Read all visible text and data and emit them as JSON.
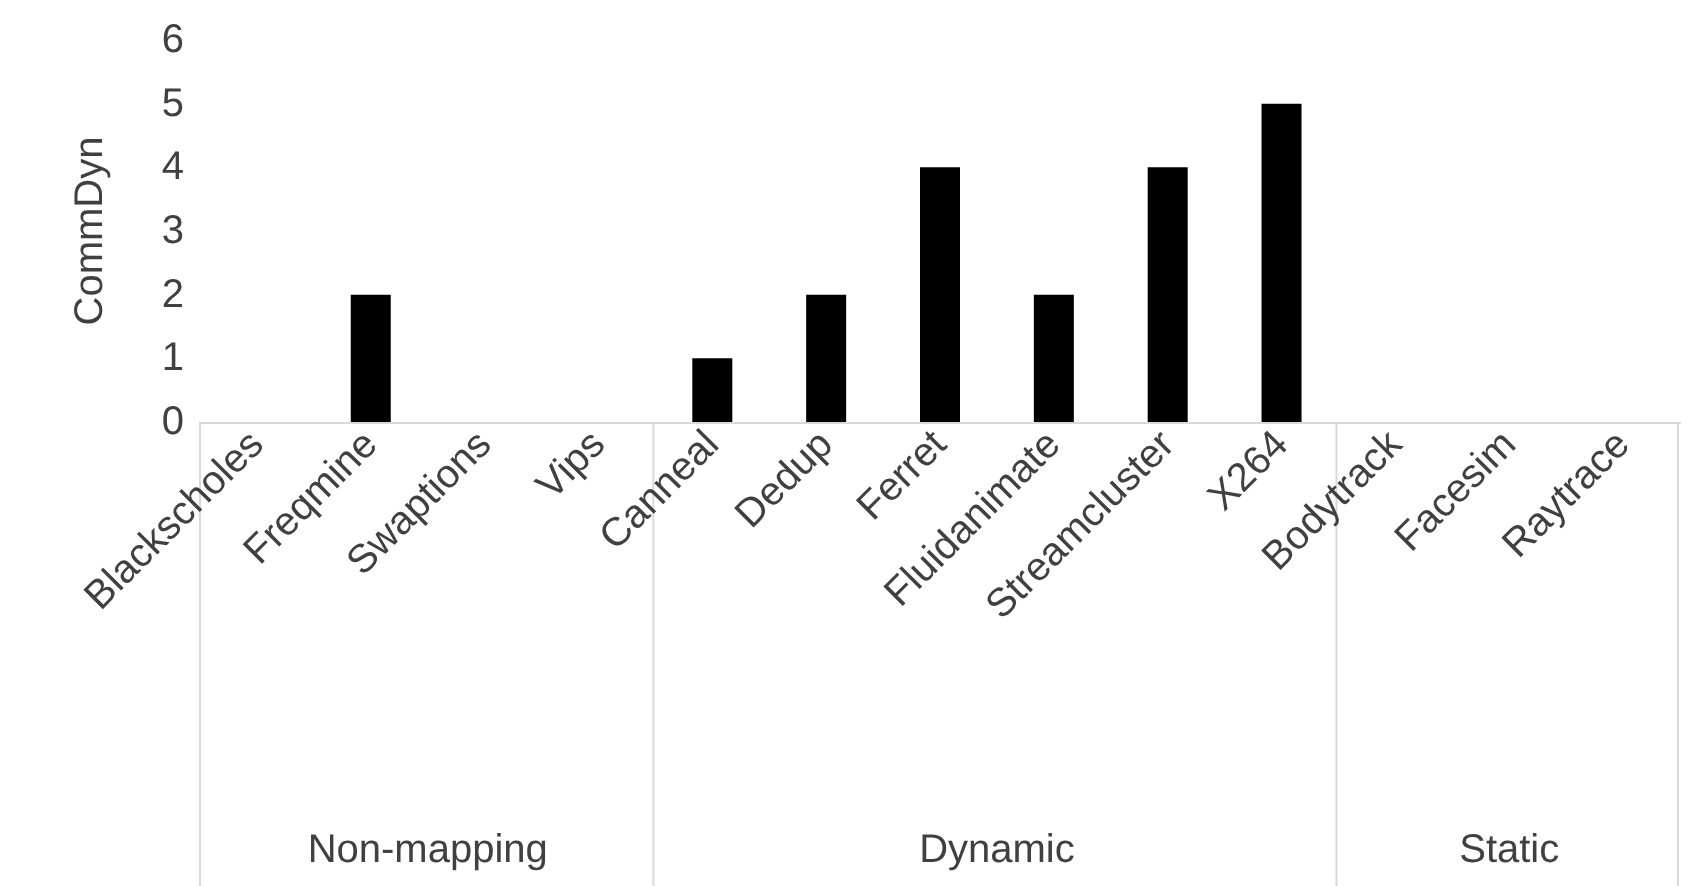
{
  "chart_data": {
    "type": "bar",
    "ylabel": "CommDyn",
    "categories": [
      "Blackscholes",
      "Freqmine",
      "Swaptions",
      "Vips",
      "Canneal",
      "Dedup",
      "Ferret",
      "Fluidanimate",
      "Streamcluster",
      "X264",
      "Bodytrack",
      "Facesim",
      "Raytrace"
    ],
    "values": [
      0,
      2,
      0,
      0,
      1,
      2,
      4,
      2,
      4,
      5,
      0,
      0,
      0
    ],
    "color": "#000000",
    "ylim": [
      0,
      6
    ],
    "yticks": [
      0,
      1,
      2,
      3,
      4,
      5,
      6
    ],
    "grid": false,
    "annotations": [
      "Non-mapping",
      "Dynamic",
      "Static"
    ]
  }
}
